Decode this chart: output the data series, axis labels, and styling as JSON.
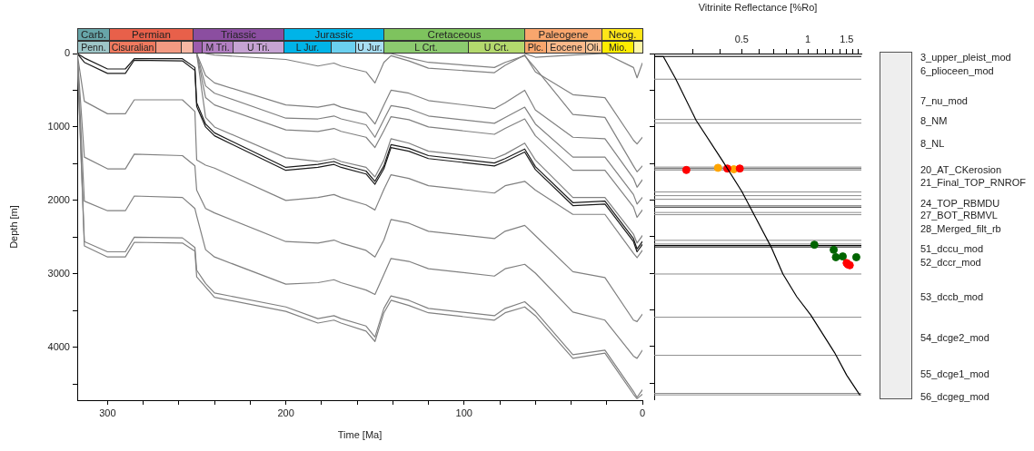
{
  "chart_data": [
    {
      "type": "line",
      "xlabel": "Time [Ma]",
      "ylabel": "Depth [m]",
      "xlim": [
        317,
        0
      ],
      "xticks": [
        300,
        {
          "value": 280,
          "label": null
        },
        {
          "value": 260,
          "label": null
        },
        {
          "value": 240,
          "label": null
        },
        {
          "value": 220,
          "label": null
        },
        200,
        {
          "value": 180,
          "label": null
        },
        {
          "value": 160,
          "label": null
        },
        {
          "value": 140,
          "label": null
        },
        {
          "value": 120,
          "label": null
        },
        100,
        {
          "value": 80,
          "label": null
        },
        {
          "value": 60,
          "label": null
        },
        {
          "value": 40,
          "label": null
        },
        {
          "value": 20,
          "label": null
        },
        0
      ],
      "ylim": [
        4720,
        0
      ],
      "yticks": [
        0,
        {
          "value": 500,
          "label": null
        },
        1000,
        {
          "value": 1500,
          "label": null
        },
        2000,
        {
          "value": 2500,
          "label": null
        },
        3000,
        {
          "value": 3500,
          "label": null
        },
        4000,
        {
          "value": 4500,
          "label": null
        }
      ],
      "x": [
        317,
        313,
        300,
        290,
        285,
        258,
        251,
        250,
        245,
        240,
        200,
        182,
        173,
        169,
        155,
        150,
        145,
        141,
        131,
        120,
        83,
        77,
        66,
        60,
        39,
        21,
        5,
        3,
        0
      ],
      "series": [
        {
          "color": "#808080",
          "values": [
            0,
            2620,
            2770,
            2770,
            2570,
            2580,
            2690,
            3040,
            3180,
            3320,
            3510,
            3670,
            3630,
            3670,
            3780,
            3920,
            3530,
            3360,
            3430,
            3530,
            3630,
            3530,
            3450,
            3570,
            4150,
            4080,
            4640,
            4700,
            4640
          ]
        },
        {
          "color": "#808080",
          "values": [
            0,
            2560,
            2700,
            2700,
            2500,
            2510,
            2640,
            2950,
            3130,
            3260,
            3450,
            3610,
            3570,
            3610,
            3710,
            3860,
            3470,
            3300,
            3360,
            3470,
            3570,
            3470,
            3380,
            3510,
            4100,
            4040,
            4600,
            4680,
            4580
          ]
        },
        {
          "color": "#808080",
          "values": [
            0,
            2010,
            2140,
            2140,
            1940,
            1960,
            2110,
            2210,
            2670,
            2770,
            3140,
            3120,
            3080,
            3120,
            3220,
            3280,
            3010,
            2790,
            2830,
            2930,
            3030,
            2930,
            2870,
            2990,
            3520,
            3630,
            4120,
            4150,
            4040
          ]
        },
        {
          "color": "#808080",
          "values": [
            0,
            1410,
            1570,
            1570,
            1370,
            1390,
            1530,
            1860,
            2110,
            2170,
            2560,
            2580,
            2540,
            2580,
            2680,
            2770,
            2540,
            2260,
            2310,
            2420,
            2520,
            2420,
            2340,
            2480,
            2970,
            3050,
            3630,
            3650,
            3550
          ]
        },
        {
          "color": "#808080",
          "values": [
            0,
            650,
            820,
            820,
            630,
            630,
            790,
            1450,
            1520,
            1560,
            2000,
            1960,
            1920,
            1960,
            2060,
            2130,
            1850,
            1650,
            1700,
            1800,
            1900,
            1800,
            1740,
            1860,
            2190,
            2190,
            2720,
            2780,
            2680
          ]
        },
        {
          "color": "#1a1a1a",
          "values": [
            0,
            60,
            210,
            210,
            70,
            70,
            190,
            670,
            960,
            1080,
            1550,
            1510,
            1470,
            1510,
            1600,
            1740,
            1530,
            1240,
            1290,
            1390,
            1490,
            1430,
            1300,
            1540,
            2030,
            2010,
            2520,
            2660,
            2560
          ]
        },
        {
          "color": "#1a1a1a",
          "values": [
            0,
            120,
            270,
            270,
            90,
            100,
            230,
            720,
            1000,
            1120,
            1590,
            1550,
            1510,
            1550,
            1640,
            1780,
            1570,
            1280,
            1330,
            1430,
            1530,
            1470,
            1340,
            1580,
            2070,
            2050,
            2560,
            2700,
            2600
          ]
        },
        {
          "color": "#808080",
          "values": [
            null,
            null,
            null,
            null,
            null,
            null,
            null,
            0,
            870,
            1000,
            1420,
            1470,
            1430,
            1470,
            1550,
            1680,
            1450,
            1160,
            1220,
            1330,
            1430,
            1370,
            1220,
            1450,
            1960,
            1960,
            2460,
            2580,
            2480
          ]
        },
        {
          "color": "#808080",
          "values": [
            null,
            null,
            null,
            null,
            null,
            null,
            null,
            0,
            600,
            700,
            1040,
            1060,
            1020,
            1060,
            1140,
            1280,
            1050,
            860,
            900,
            1000,
            1100,
            1020,
            890,
            1120,
            1590,
            1590,
            2090,
            2230,
            2130
          ]
        },
        {
          "color": "#808080",
          "values": [
            null,
            null,
            null,
            null,
            null,
            null,
            null,
            0,
            440,
            540,
            880,
            890,
            850,
            890,
            970,
            1140,
            900,
            710,
            750,
            850,
            950,
            870,
            730,
            960,
            1410,
            1410,
            1920,
            2050,
            1960
          ]
        },
        {
          "color": "#808080",
          "values": [
            null,
            null,
            null,
            null,
            null,
            null,
            null,
            0,
            300,
            400,
            700,
            730,
            690,
            730,
            810,
            960,
            700,
            500,
            540,
            640,
            750,
            670,
            500,
            770,
            1140,
            1160,
            1700,
            1820,
            1720
          ]
        },
        {
          "color": "#808080",
          "values": [
            null,
            null,
            null,
            null,
            null,
            null,
            null,
            null,
            0,
            20,
            80,
            170,
            130,
            170,
            250,
            400,
            120,
            30,
            100,
            200,
            260,
            160,
            20,
            250,
            560,
            600,
            1180,
            1230,
            1140
          ]
        },
        {
          "color": "#808080",
          "values": [
            null,
            null,
            null,
            null,
            null,
            null,
            null,
            null,
            null,
            null,
            null,
            null,
            null,
            null,
            null,
            null,
            0,
            0,
            60,
            120,
            190,
            120,
            30,
            200,
            830,
            870,
            1530,
            1610,
            1530
          ]
        },
        {
          "color": "#808080",
          "values": [
            null,
            null,
            null,
            null,
            null,
            null,
            null,
            null,
            null,
            null,
            null,
            null,
            null,
            null,
            null,
            null,
            null,
            null,
            null,
            null,
            null,
            null,
            0,
            50,
            20,
            0,
            190,
            330,
            130
          ]
        }
      ],
      "annotations": [
        "Carb.",
        "Permian",
        "Triassic",
        "Jurassic",
        "Cretaceous",
        "Paleogene",
        "Neog.",
        "Penn.",
        "Cisuralian",
        "M Tri.",
        "U Tri.",
        "L Jur.",
        "U Jur.",
        "L Crt.",
        "U Crt.",
        "Plc.",
        "Eocene",
        "Oli.",
        "Mio."
      ]
    },
    {
      "type": "line",
      "xlabel": "Vitrinite Reflectance [%Ro]",
      "log": "x",
      "tick_labels": "x",
      "xlim": [
        0.2,
        1.75
      ],
      "xticks": [
        {
          "value": 0.3,
          "label": null
        },
        {
          "value": 0.4,
          "label": null
        },
        0.5,
        {
          "value": 0.6,
          "label": null
        },
        {
          "value": 0.7,
          "label": null
        },
        {
          "value": 0.8,
          "label": null
        },
        {
          "value": 0.9,
          "label": null
        },
        1,
        {
          "value": 1.1,
          "label": null
        },
        {
          "value": 1.2,
          "label": null
        },
        {
          "value": 1.3,
          "label": null
        },
        {
          "value": 1.4,
          "label": null
        },
        1.5,
        {
          "value": 1.6,
          "label": null
        },
        {
          "value": 1.7,
          "label": null
        }
      ],
      "ylim": [
        4720,
        0
      ],
      "yticks": [
        0,
        500,
        1000,
        1500,
        2000,
        2500,
        3000,
        3500,
        4000,
        4500
      ],
      "series": [
        {
          "color": "#000000",
          "x": [
            0.2,
            0.2,
            0.22,
            0.25,
            0.31,
            0.41,
            0.5,
            0.68,
            0.77,
            0.89,
            1.03,
            1.32,
            1.5,
            1.72
          ],
          "values": [
            0,
            40,
            40,
            340,
            910,
            1470,
            1880,
            2640,
            3010,
            3320,
            3570,
            4080,
            4390,
            4660
          ]
        },
        {
          "type": "scatter",
          "color": "#ff0000",
          "x": [
            0.28,
            0.43,
            0.49,
            1.5,
            1.55,
            1.52
          ],
          "values": [
            1590,
            1570,
            1570,
            2860,
            2890,
            2880
          ]
        },
        {
          "type": "scatter",
          "color": "#ffa500",
          "x": [
            0.39,
            0.46
          ],
          "values": [
            1560,
            1580
          ]
        },
        {
          "type": "scatter",
          "color": "#006400",
          "x": [
            1.07,
            1.31,
            1.34,
            1.44,
            1.66
          ],
          "values": [
            2610,
            2680,
            2780,
            2770,
            2780
          ]
        }
      ],
      "ref_lines": [
        {
          "axis": "y",
          "value": 40,
          "color": "#000000"
        },
        {
          "axis": "y",
          "value": 350,
          "color": "#8c8c8c"
        },
        {
          "axis": "y",
          "value": 900,
          "color": "#8c8c8c"
        },
        {
          "axis": "y",
          "value": 950,
          "color": "#8c8c8c"
        },
        {
          "axis": "y",
          "value": 1550,
          "color": "#8c8c8c"
        },
        {
          "axis": "y",
          "value": 1570,
          "color": "#555555"
        },
        {
          "axis": "y",
          "value": 1590,
          "color": "#8c8c8c"
        },
        {
          "axis": "y",
          "value": 1890,
          "color": "#8c8c8c"
        },
        {
          "axis": "y",
          "value": 1940,
          "color": "#8c8c8c"
        },
        {
          "axis": "y",
          "value": 1990,
          "color": "#8c8c8c"
        },
        {
          "axis": "y",
          "value": 2080,
          "color": "#555555"
        },
        {
          "axis": "y",
          "value": 2100,
          "color": "#555555"
        },
        {
          "axis": "y",
          "value": 2170,
          "color": "#8c8c8c"
        },
        {
          "axis": "y",
          "value": 2200,
          "color": "#8c8c8c"
        },
        {
          "axis": "y",
          "value": 2550,
          "color": "#8c8c8c"
        },
        {
          "axis": "y",
          "value": 2600,
          "color": "#8c8c8c"
        },
        {
          "axis": "y",
          "value": 2620,
          "color": "#000000"
        },
        {
          "axis": "y",
          "value": 2640,
          "color": "#000000"
        },
        {
          "axis": "y",
          "value": 3010,
          "color": "#8c8c8c"
        },
        {
          "axis": "y",
          "value": 3600,
          "color": "#8c8c8c"
        },
        {
          "axis": "y",
          "value": 4120,
          "color": "#8c8c8c"
        },
        {
          "axis": "y",
          "value": 4640,
          "color": "#8c8c8c"
        },
        {
          "axis": "y",
          "value": 4660,
          "color": "#8c8c8c"
        }
      ],
      "annotations": [
        "3_upper_pleist_mod",
        "6_plioceen_mod",
        "7_nu_mod",
        "8_NM",
        "8_NL",
        "20_AT_CKerosion",
        "21_Final_TOP_RNROF",
        "24_TOP_RBMDU",
        "27_BOT_RBMVL",
        "28_Merged_filt_rb",
        "51_dccu_mod",
        "52_dccr_mod",
        "53_dccb_mod",
        "54_dcge2_mod",
        "55_dcge1_mod",
        "56_dcgeg_mod"
      ]
    }
  ]
}
